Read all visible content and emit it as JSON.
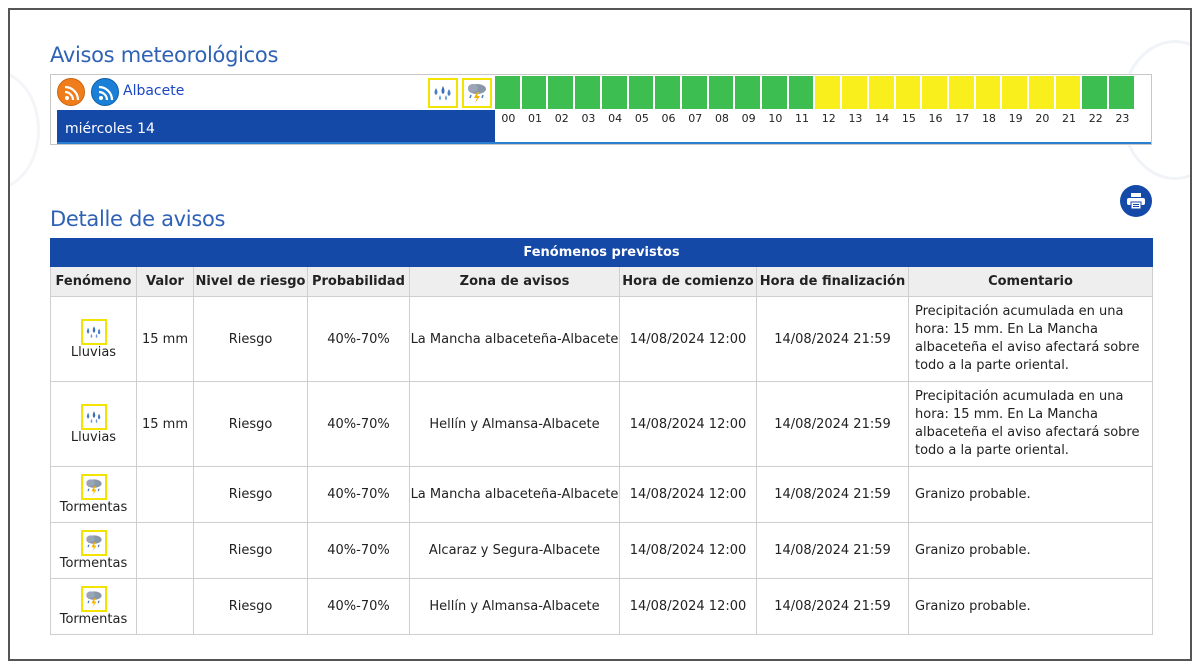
{
  "avisos": {
    "title": "Avisos meteorológicos",
    "province": "Albacete",
    "day_label": "miércoles 14",
    "top_icons": [
      "rain-icon",
      "storm-icon"
    ],
    "hours": [
      "00",
      "01",
      "02",
      "03",
      "04",
      "05",
      "06",
      "07",
      "08",
      "09",
      "10",
      "11",
      "12",
      "13",
      "14",
      "15",
      "16",
      "17",
      "18",
      "19",
      "20",
      "21",
      "22",
      "23"
    ],
    "hour_levels": [
      "green",
      "green",
      "green",
      "green",
      "green",
      "green",
      "green",
      "green",
      "green",
      "green",
      "green",
      "green",
      "yellow",
      "yellow",
      "yellow",
      "yellow",
      "yellow",
      "yellow",
      "yellow",
      "yellow",
      "yellow",
      "yellow",
      "green",
      "green"
    ],
    "colors": {
      "green": "#3cbf50",
      "yellow": "#f9ef1d",
      "header_blue": "#1449a8",
      "title_blue": "#2f62b5"
    }
  },
  "detalle": {
    "title": "Detalle de avisos",
    "print_icon": "printer-icon",
    "caption": "Fenómenos previstos",
    "headers": [
      "Fenómeno",
      "Valor",
      "Nivel de riesgo",
      "Probabilidad",
      "Zona de avisos",
      "Hora de comienzo",
      "Hora de finalización",
      "Comentario"
    ],
    "rows": [
      {
        "icon": "rain-icon",
        "fenomeno": "Lluvias",
        "valor": "15 mm",
        "nivel": "Riesgo",
        "probabilidad": "40%-70%",
        "zona": "La Mancha albaceteña-Albacete",
        "comienzo": "14/08/2024 12:00",
        "fin": "14/08/2024 21:59",
        "comentario": "Precipitación acumulada en una hora: 15 mm. En La Mancha albaceteña el aviso afectará sobre todo a la parte oriental."
      },
      {
        "icon": "rain-icon",
        "fenomeno": "Lluvias",
        "valor": "15 mm",
        "nivel": "Riesgo",
        "probabilidad": "40%-70%",
        "zona": "Hellín y Almansa-Albacete",
        "comienzo": "14/08/2024 12:00",
        "fin": "14/08/2024 21:59",
        "comentario": "Precipitación acumulada en una hora: 15 mm. En La Mancha albaceteña el aviso afectará sobre todo a la parte oriental."
      },
      {
        "icon": "storm-icon",
        "fenomeno": "Tormentas",
        "valor": "",
        "nivel": "Riesgo",
        "probabilidad": "40%-70%",
        "zona": "La Mancha albaceteña-Albacete",
        "comienzo": "14/08/2024 12:00",
        "fin": "14/08/2024 21:59",
        "comentario": "Granizo probable."
      },
      {
        "icon": "storm-icon",
        "fenomeno": "Tormentas",
        "valor": "",
        "nivel": "Riesgo",
        "probabilidad": "40%-70%",
        "zona": "Alcaraz y Segura-Albacete",
        "comienzo": "14/08/2024 12:00",
        "fin": "14/08/2024 21:59",
        "comentario": "Granizo probable."
      },
      {
        "icon": "storm-icon",
        "fenomeno": "Tormentas",
        "valor": "",
        "nivel": "Riesgo",
        "probabilidad": "40%-70%",
        "zona": "Hellín y Almansa-Albacete",
        "comienzo": "14/08/2024 12:00",
        "fin": "14/08/2024 21:59",
        "comentario": "Granizo probable."
      }
    ]
  }
}
